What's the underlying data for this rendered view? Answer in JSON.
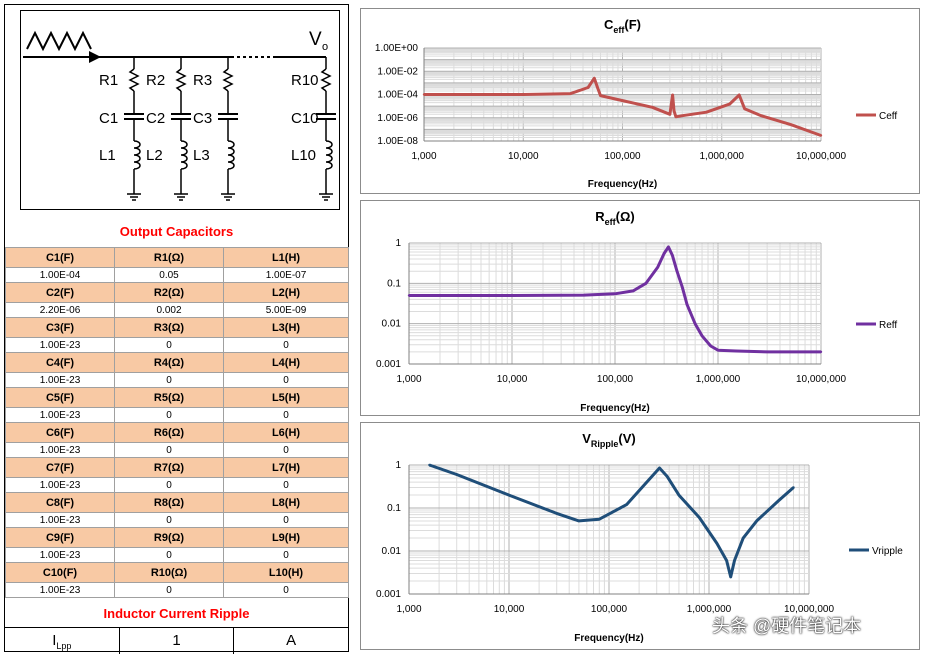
{
  "schematic": {
    "vo_label": "V",
    "vo_sub": "o",
    "branches": [
      {
        "r": "R1",
        "c": "C1",
        "l": "L1"
      },
      {
        "r": "R2",
        "c": "C2",
        "l": "L2"
      },
      {
        "r": "R3",
        "c": "C3",
        "l": "L3"
      },
      {
        "r": "R10",
        "c": "C10",
        "l": "L10"
      }
    ]
  },
  "output_capacitors": {
    "title": "Output Capacitors",
    "rows": [
      {
        "h": [
          "C1(F)",
          "R1(Ω)",
          "L1(H)"
        ],
        "v": [
          "1.00E-04",
          "0.05",
          "1.00E-07"
        ]
      },
      {
        "h": [
          "C2(F)",
          "R2(Ω)",
          "L2(H)"
        ],
        "v": [
          "2.20E-06",
          "0.002",
          "5.00E-09"
        ]
      },
      {
        "h": [
          "C3(F)",
          "R3(Ω)",
          "L3(H)"
        ],
        "v": [
          "1.00E-23",
          "0",
          "0"
        ]
      },
      {
        "h": [
          "C4(F)",
          "R4(Ω)",
          "L4(H)"
        ],
        "v": [
          "1.00E-23",
          "0",
          "0"
        ]
      },
      {
        "h": [
          "C5(F)",
          "R5(Ω)",
          "L5(H)"
        ],
        "v": [
          "1.00E-23",
          "0",
          "0"
        ]
      },
      {
        "h": [
          "C6(F)",
          "R6(Ω)",
          "L6(H)"
        ],
        "v": [
          "1.00E-23",
          "0",
          "0"
        ]
      },
      {
        "h": [
          "C7(F)",
          "R7(Ω)",
          "L7(H)"
        ],
        "v": [
          "1.00E-23",
          "0",
          "0"
        ]
      },
      {
        "h": [
          "C8(F)",
          "R8(Ω)",
          "L8(H)"
        ],
        "v": [
          "1.00E-23",
          "0",
          "0"
        ]
      },
      {
        "h": [
          "C9(F)",
          "R9(Ω)",
          "L9(H)"
        ],
        "v": [
          "1.00E-23",
          "0",
          "0"
        ]
      },
      {
        "h": [
          "C10(F)",
          "R10(Ω)",
          "L10(H)"
        ],
        "v": [
          "1.00E-23",
          "0",
          "0"
        ]
      }
    ]
  },
  "inductor_ripple": {
    "title": "Inductor Current Ripple",
    "label_main": "I",
    "label_sub": "Lpp",
    "value": "1",
    "unit": "A"
  },
  "watermark": "头条 @硬件笔记本",
  "chart_data": [
    {
      "type": "line",
      "title_main": "C",
      "title_sub": "eff",
      "title_tail": "(F)",
      "xlabel": "Frequency(Hz)",
      "ylabel": "",
      "x_scale": "log",
      "y_scale": "log",
      "xlim": [
        1000,
        10000000
      ],
      "ylim": [
        1e-08,
        1
      ],
      "x_ticks": [
        "1,000",
        "10,000",
        "100,000",
        "1,000,000",
        "10,000,000"
      ],
      "y_ticks": [
        "1.00E+00",
        "1.00E-02",
        "1.00E-04",
        "1.00E-06",
        "1.00E-08"
      ],
      "grid": true,
      "legend": "right",
      "color": "#c0504d",
      "series": [
        {
          "name": "Ceff",
          "x": [
            1000,
            10000,
            30000,
            45000,
            52000,
            56000,
            60000,
            100000,
            200000,
            300000,
            320000,
            330000,
            345000,
            400000,
            700000,
            1200000,
            1500000,
            1700000,
            2500000,
            5000000,
            10000000
          ],
          "y": [
            0.0001,
            0.0001,
            0.00012,
            0.0004,
            0.0025,
            0.0004,
            8e-05,
            3e-05,
            8e-06,
            2e-06,
            9e-05,
            4e-06,
            1.2e-06,
            1.5e-06,
            3e-06,
            1.5e-05,
            9e-05,
            6e-06,
            1.5e-06,
            2.5e-07,
            3e-08
          ]
        }
      ]
    },
    {
      "type": "line",
      "title_main": "R",
      "title_sub": "eff",
      "title_tail": "(Ω)",
      "xlabel": "Frequency(Hz)",
      "ylabel": "",
      "x_scale": "log",
      "y_scale": "log",
      "xlim": [
        1000,
        10000000
      ],
      "ylim": [
        0.001,
        1
      ],
      "x_ticks": [
        "1,000",
        "10,000",
        "100,000",
        "1,000,000",
        "10,000,000"
      ],
      "y_ticks": [
        "1",
        "0.1",
        "0.01",
        "0.001"
      ],
      "grid": true,
      "legend": "right",
      "color": "#7030a0",
      "series": [
        {
          "name": "Reff",
          "x": [
            1000,
            10000,
            50000,
            100000,
            150000,
            200000,
            260000,
            300000,
            330000,
            360000,
            400000,
            450000,
            500000,
            600000,
            700000,
            850000,
            1000000,
            1500000,
            3000000,
            10000000
          ],
          "y": [
            0.05,
            0.05,
            0.051,
            0.055,
            0.065,
            0.1,
            0.25,
            0.55,
            0.8,
            0.5,
            0.2,
            0.08,
            0.03,
            0.01,
            0.005,
            0.0028,
            0.0022,
            0.0021,
            0.002,
            0.002
          ]
        }
      ]
    },
    {
      "type": "line",
      "title_main": "V",
      "title_sub": "Ripple",
      "title_tail": "(V)",
      "xlabel": "Frequency(Hz)",
      "ylabel": "",
      "x_scale": "log",
      "y_scale": "log",
      "xlim": [
        1000,
        10000000
      ],
      "ylim": [
        0.001,
        1
      ],
      "x_ticks": [
        "1,000",
        "10,000",
        "100,000",
        "1,000,000",
        "10,000,000"
      ],
      "y_ticks": [
        "1",
        "0.1",
        "0.01",
        "0.001"
      ],
      "grid": true,
      "legend": "right",
      "color": "#1f4e79",
      "series": [
        {
          "name": "Vripple",
          "x": [
            1600,
            3000,
            10000,
            30000,
            50000,
            80000,
            150000,
            250000,
            320000,
            380000,
            500000,
            800000,
            1200000,
            1500000,
            1650000,
            1800000,
            2200000,
            3000000,
            5000000,
            7000000
          ],
          "y": [
            1.0,
            0.6,
            0.2,
            0.075,
            0.05,
            0.055,
            0.12,
            0.45,
            0.85,
            0.55,
            0.2,
            0.06,
            0.015,
            0.006,
            0.0025,
            0.006,
            0.02,
            0.05,
            0.15,
            0.3
          ]
        }
      ]
    }
  ]
}
